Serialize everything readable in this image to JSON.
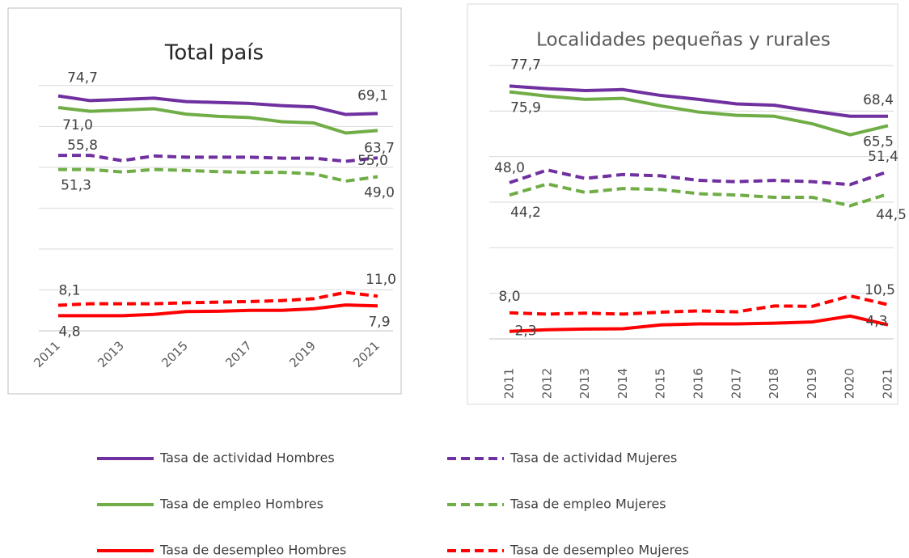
{
  "chart_data": [
    {
      "type": "line",
      "title": "Total país",
      "x": [
        2011,
        2012,
        2013,
        2014,
        2015,
        2016,
        2017,
        2018,
        2019,
        2020,
        2021
      ],
      "xlim": [
        2011,
        2021
      ],
      "xticks": [
        2011,
        2013,
        2015,
        2017,
        2019,
        2021
      ],
      "ylim": [
        0,
        80
      ],
      "yticks": [
        0,
        13,
        26,
        39,
        52,
        65,
        78
      ],
      "grid": true,
      "series": [
        {
          "name": "Tasa de actividad Hombres",
          "color": "#7030a0",
          "dashed": false,
          "values": [
            74.7,
            73.2,
            73.6,
            74.0,
            72.9,
            72.6,
            72.3,
            71.6,
            71.2,
            68.8,
            69.1
          ],
          "value_labels": [
            "74,7",
            null,
            null,
            null,
            null,
            null,
            null,
            null,
            null,
            null,
            "69,1"
          ]
        },
        {
          "name": "Tasa de actividad Mujeres",
          "color": "#7030a0",
          "dashed": true,
          "values": [
            55.8,
            55.8,
            54.1,
            55.6,
            55.2,
            55.2,
            55.2,
            54.9,
            54.9,
            53.9,
            55.0
          ],
          "value_labels": [
            "55,8",
            null,
            null,
            null,
            null,
            null,
            null,
            null,
            null,
            null,
            "55,0"
          ]
        },
        {
          "name": "Tasa de empleo Hombres",
          "color": "#70ad47",
          "dashed": false,
          "values": [
            71.0,
            69.8,
            70.2,
            70.6,
            68.9,
            68.2,
            67.8,
            66.5,
            66.1,
            62.9,
            63.7
          ],
          "value_labels": [
            "71,0",
            null,
            null,
            null,
            null,
            null,
            null,
            null,
            null,
            null,
            "63,7"
          ]
        },
        {
          "name": "Tasa de empleo Mujeres",
          "color": "#70ad47",
          "dashed": true,
          "values": [
            51.3,
            51.3,
            50.5,
            51.3,
            51.0,
            50.6,
            50.4,
            50.4,
            49.9,
            47.6,
            49.0
          ],
          "value_labels": [
            "51,3",
            null,
            null,
            null,
            null,
            null,
            null,
            null,
            null,
            null,
            "49,0"
          ]
        },
        {
          "name": "Tasa de desempleo Hombres",
          "color": "#ff0000",
          "dashed": false,
          "values": [
            4.8,
            4.8,
            4.8,
            5.2,
            6.1,
            6.2,
            6.5,
            6.5,
            7.0,
            8.2,
            7.9
          ],
          "value_labels": [
            "4,8",
            null,
            null,
            null,
            null,
            null,
            null,
            null,
            null,
            null,
            "7,9"
          ]
        },
        {
          "name": "Tasa de desempleo Mujeres",
          "color": "#ff0000",
          "dashed": true,
          "values": [
            8.1,
            8.6,
            8.6,
            8.6,
            8.9,
            9.1,
            9.3,
            9.6,
            10.2,
            12.2,
            11.0
          ],
          "value_labels": [
            "8,1",
            null,
            null,
            null,
            null,
            null,
            null,
            null,
            null,
            null,
            "11,0"
          ]
        }
      ]
    },
    {
      "type": "line",
      "title": "Localidades pequeñas y rurales",
      "x": [
        2011,
        2012,
        2013,
        2014,
        2015,
        2016,
        2017,
        2018,
        2019,
        2020,
        2021
      ],
      "xlim": [
        2011,
        2021
      ],
      "xticks": [
        2011,
        2012,
        2013,
        2014,
        2015,
        2016,
        2017,
        2018,
        2019,
        2020,
        2021
      ],
      "ylim": [
        0,
        85
      ],
      "yticks": [
        0,
        14,
        28,
        42,
        56,
        70,
        84
      ],
      "grid": true,
      "series": [
        {
          "color": "#7030a0",
          "dashed": false,
          "values": [
            77.7,
            76.9,
            76.3,
            76.6,
            74.8,
            73.6,
            72.2,
            71.8,
            70.0,
            68.4,
            68.4
          ],
          "value_labels": [
            "77,7",
            null,
            null,
            null,
            null,
            null,
            null,
            null,
            null,
            null,
            "68,4"
          ]
        },
        {
          "color": "#7030a0",
          "dashed": true,
          "values": [
            48.0,
            51.9,
            49.3,
            50.5,
            50.1,
            48.7,
            48.3,
            48.7,
            48.3,
            47.4,
            51.4
          ],
          "value_labels": [
            "48,0",
            null,
            null,
            null,
            null,
            null,
            null,
            null,
            null,
            null,
            "51,4"
          ]
        },
        {
          "color": "#70ad47",
          "dashed": false,
          "values": [
            75.9,
            74.6,
            73.6,
            73.9,
            71.6,
            69.7,
            68.7,
            68.4,
            66.1,
            62.7,
            65.5
          ],
          "value_labels": [
            "75,9",
            null,
            null,
            null,
            null,
            null,
            null,
            null,
            null,
            null,
            "65,5"
          ]
        },
        {
          "color": "#70ad47",
          "dashed": true,
          "values": [
            44.2,
            47.6,
            45.0,
            46.2,
            45.9,
            44.6,
            44.2,
            43.5,
            43.5,
            40.9,
            44.5
          ],
          "value_labels": [
            "44,2",
            null,
            null,
            null,
            null,
            null,
            null,
            null,
            null,
            null,
            "44,5"
          ]
        },
        {
          "color": "#ff0000",
          "dashed": false,
          "values": [
            2.3,
            2.8,
            3.0,
            3.1,
            4.3,
            4.6,
            4.6,
            4.8,
            5.2,
            7.0,
            4.3
          ],
          "value_labels": [
            "2,3",
            null,
            null,
            null,
            null,
            null,
            null,
            null,
            null,
            null,
            "4,3"
          ]
        },
        {
          "color": "#ff0000",
          "dashed": true,
          "values": [
            8.0,
            7.6,
            7.9,
            7.6,
            8.2,
            8.6,
            8.3,
            10.1,
            10.0,
            13.2,
            10.5
          ],
          "value_labels": [
            "8,0",
            null,
            null,
            null,
            null,
            null,
            null,
            null,
            null,
            null,
            "10,5"
          ]
        }
      ]
    }
  ]
}
